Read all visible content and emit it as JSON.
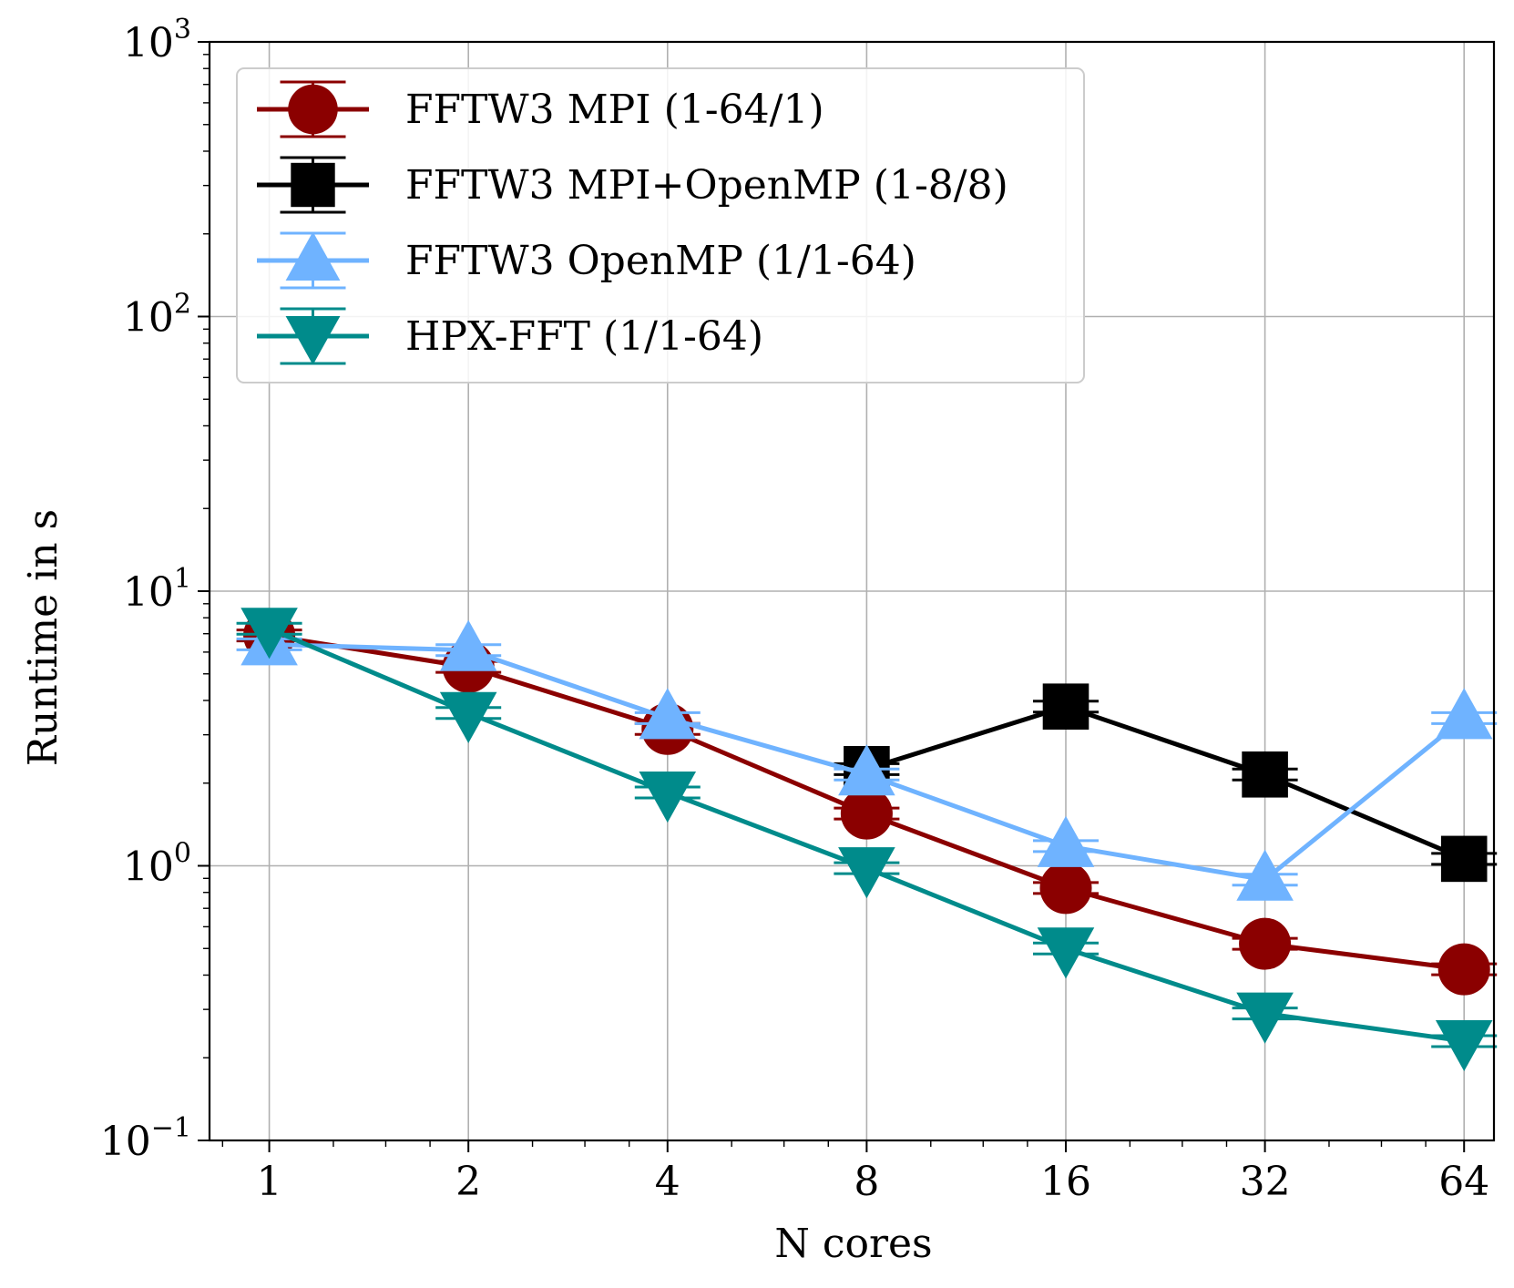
{
  "chart_data": {
    "type": "line",
    "title": "",
    "xlabel": "N cores",
    "ylabel": "Runtime in s",
    "xscale": "log2",
    "yscale": "log10",
    "grid": true,
    "legend_position": "upper-left",
    "x": [
      1,
      2,
      4,
      8,
      16,
      32,
      64
    ],
    "x_tick_labels": [
      "1",
      "2",
      "4",
      "8",
      "16",
      "32",
      "64"
    ],
    "ylim": [
      0.1,
      1000
    ],
    "y_ticks": [
      {
        "base": "10",
        "exp": "−1",
        "value": 0.1
      },
      {
        "base": "10",
        "exp": "0",
        "value": 1
      },
      {
        "base": "10",
        "exp": "1",
        "value": 10
      },
      {
        "base": "10",
        "exp": "2",
        "value": 100
      },
      {
        "base": "10",
        "exp": "3",
        "value": 1000
      }
    ],
    "series": [
      {
        "name": "FFTW3 MPI (1-64/1)",
        "color": "#8b0000",
        "marker": "circle",
        "x": [
          1,
          2,
          4,
          8,
          16,
          32,
          64
        ],
        "values": [
          6.9,
          5.3,
          3.15,
          1.55,
          0.83,
          0.52,
          0.42
        ]
      },
      {
        "name": "FFTW3 MPI+OpenMP (1-8/8)",
        "color": "#000000",
        "marker": "square",
        "x": [
          8,
          16,
          32,
          64
        ],
        "values": [
          2.25,
          3.8,
          2.15,
          1.06
        ]
      },
      {
        "name": "FFTW3 OpenMP (1/1-64)",
        "color": "#6fb3ff",
        "marker": "triangle-up",
        "x": [
          1,
          2,
          4,
          8,
          16,
          32,
          64
        ],
        "values": [
          6.4,
          6.1,
          3.45,
          2.15,
          1.18,
          0.89,
          3.45
        ]
      },
      {
        "name": "HPX-FFT (1/1-64)",
        "color": "#008b8b",
        "marker": "triangle-down",
        "x": [
          1,
          2,
          4,
          8,
          16,
          32,
          64
        ],
        "values": [
          7.3,
          3.6,
          1.85,
          0.98,
          0.5,
          0.29,
          0.23
        ]
      }
    ]
  }
}
